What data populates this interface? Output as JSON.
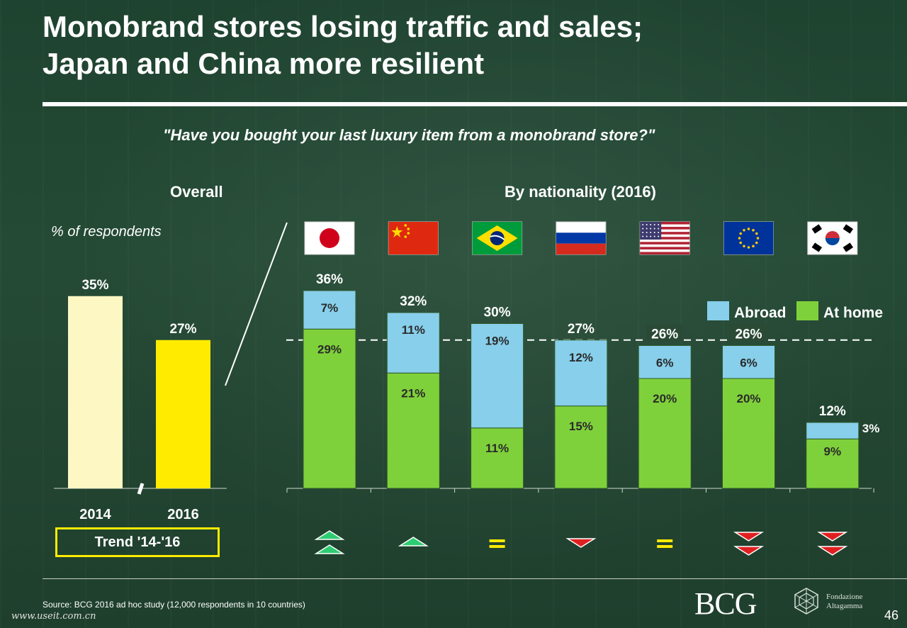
{
  "title_line1": "Monobrand stores losing traffic and sales;",
  "title_line2": "Japan and China more resilient",
  "question": "\"Have you bought your last luxury item from a monobrand store?\"",
  "overall_heading": "Overall",
  "nationality_heading": "By nationality (2016)",
  "unit_note": "% of respondents",
  "trend_label": "Trend '14-'16",
  "source": "Source: BCG 2016 ad hoc study (12,000 respondents in 10 countries)",
  "page_number": "46",
  "watermark": "www.useit.com.cn",
  "logo_bcg": "BCG",
  "logo_fondazione": "Fondazione Altagamma",
  "colors": {
    "abroad": "#87cfea",
    "at_home": "#7fd13b",
    "bar_2014": "#fdf7c3",
    "bar_2016": "#ffeb00",
    "trend_up": "#2ecc71",
    "trend_down": "#e02020",
    "trend_equal": "#ffeb00"
  },
  "chart_data": [
    {
      "type": "bar",
      "categories": [
        "2014",
        "2016"
      ],
      "values": [
        35,
        27
      ],
      "value_labels": [
        "35%",
        "27%"
      ],
      "ylim": [
        0,
        40
      ]
    },
    {
      "type": "bar",
      "stacked": true,
      "categories": [
        "Japan",
        "China",
        "Brazil",
        "Russia",
        "USA",
        "EU",
        "South Korea"
      ],
      "category_icons": [
        "flag-japan",
        "flag-china",
        "flag-brazil",
        "flag-russia",
        "flag-usa",
        "flag-eu",
        "flag-south-korea"
      ],
      "series": [
        {
          "name": "At home",
          "values": [
            29,
            21,
            11,
            15,
            20,
            20,
            9
          ],
          "labels": [
            "29%",
            "21%",
            "11%",
            "15%",
            "20%",
            "20%",
            "9%"
          ]
        },
        {
          "name": "Abroad",
          "values": [
            7,
            11,
            19,
            12,
            6,
            6,
            3
          ],
          "labels": [
            "7%",
            "11%",
            "19%",
            "12%",
            "6%",
            "6%",
            "3%"
          ]
        }
      ],
      "totals": [
        36,
        32,
        30,
        27,
        26,
        26,
        12
      ],
      "total_labels": [
        "36%",
        "32%",
        "30%",
        "27%",
        "26%",
        "26%",
        "12%"
      ],
      "reference_line": 27,
      "ylim": [
        0,
        40
      ],
      "legend_position": "top-right",
      "trend": [
        "double-up",
        "up",
        "equal",
        "down",
        "equal",
        "double-down",
        "double-down"
      ]
    }
  ]
}
